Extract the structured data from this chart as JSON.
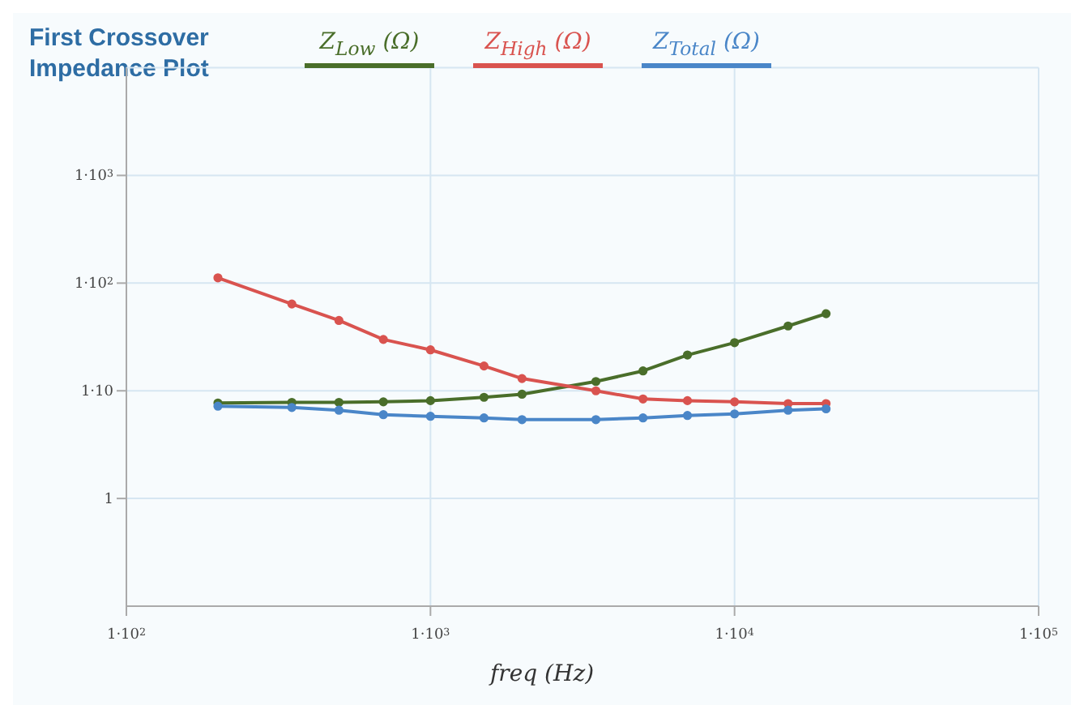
{
  "chart_data": {
    "type": "line",
    "title": "First Crossover\nImpedance Plot",
    "xlabel": "freq (Hz)",
    "x": [
      200,
      350,
      500,
      700,
      1000,
      1500,
      2000,
      3500,
      5000,
      7000,
      10000,
      15000,
      20000
    ],
    "series": [
      {
        "name": "Z$_{Low}$ (Ω)",
        "color": "#4a6e2a",
        "values": [
          7.7,
          7.8,
          7.8,
          7.9,
          8.1,
          8.7,
          9.3,
          12.2,
          15.3,
          21.5,
          28,
          40,
          52
        ]
      },
      {
        "name": "Z$_{High}$ (Ω)",
        "color": "#d9534f",
        "values": [
          112,
          64,
          45,
          30,
          24,
          17,
          13,
          10,
          8.4,
          8.1,
          7.9,
          7.6,
          7.6
        ]
      },
      {
        "name": "Z$_{Total}$ (Ω)",
        "color": "#4a86c8",
        "values": [
          7.2,
          7.0,
          6.6,
          6.0,
          5.8,
          5.6,
          5.4,
          5.4,
          5.6,
          5.9,
          6.1,
          6.6,
          6.8
        ]
      }
    ],
    "log": "xy",
    "xlim": [
      100,
      100000
    ],
    "ylim": [
      0.1,
      10000
    ],
    "xticks": [
      {
        "value": 100,
        "label": "1·10$^{2}$"
      },
      {
        "value": 1000,
        "label": "1·10$^{3}$"
      },
      {
        "value": 10000,
        "label": "1·10$^{4}$"
      },
      {
        "value": 100000,
        "label": "1·10$^{5}$"
      }
    ],
    "yticks": [
      1,
      {
        "value": 10,
        "label": "1·10"
      },
      {
        "value": 100,
        "label": "1·10$^{2}$"
      },
      {
        "value": 1000,
        "label": "1·10$^{3}$"
      }
    ],
    "grid": true,
    "legend": "top",
    "marker": "circle",
    "line_style": "solid"
  }
}
